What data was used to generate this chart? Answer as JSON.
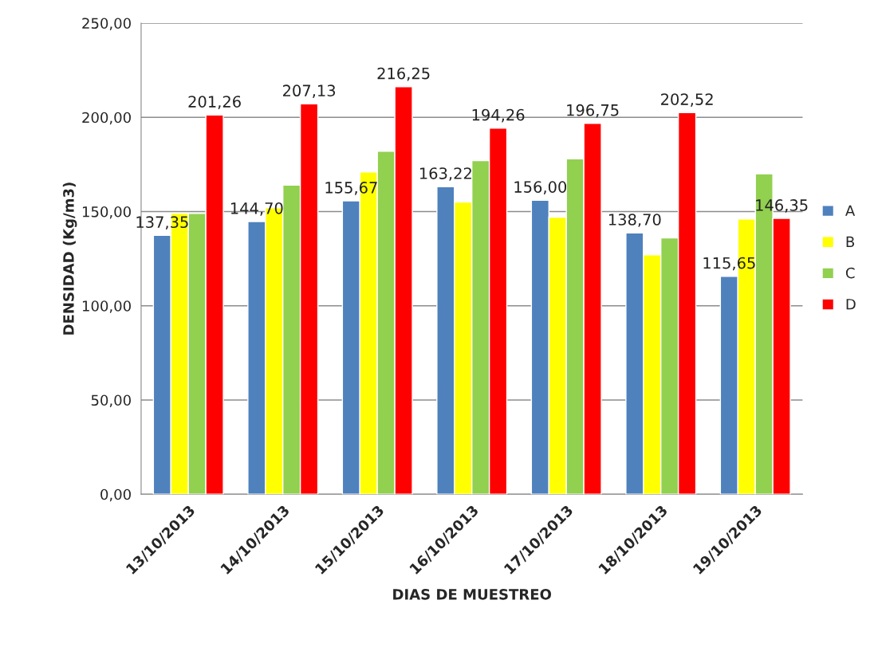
{
  "chart_data": {
    "type": "bar",
    "xlabel": "DIAS DE MUESTREO",
    "ylabel": "DENSIDAD (Kg/m3)",
    "categories": [
      "13/10/2013",
      "14/10/2013",
      "15/10/2013",
      "16/10/2013",
      "17/10/2013",
      "18/10/2013",
      "19/10/2013"
    ],
    "series": [
      {
        "name": "A",
        "color": "#4f81bd",
        "values": [
          137.35,
          144.7,
          155.67,
          163.22,
          156.0,
          138.7,
          115.65
        ],
        "value_labels": [
          "137,35",
          "144,70",
          "155,67",
          "163,22",
          "156,00",
          "138,70",
          "115,65"
        ]
      },
      {
        "name": "B",
        "color": "#ffff00",
        "values": [
          149,
          152,
          171,
          155,
          147,
          127,
          146
        ]
      },
      {
        "name": "C",
        "color": "#92d050",
        "values": [
          149,
          164,
          182,
          177,
          178,
          136,
          170
        ]
      },
      {
        "name": "D",
        "color": "#ff0000",
        "values": [
          201.26,
          207.13,
          216.25,
          194.26,
          196.75,
          202.52,
          146.35
        ],
        "value_labels": [
          "201,26",
          "207,13",
          "216,25",
          "194,26",
          "196,75",
          "202,52",
          "146,35"
        ]
      }
    ],
    "ylim": [
      0,
      250
    ],
    "yticks": [
      {
        "value": 0,
        "label": "0,00"
      },
      {
        "value": 50,
        "label": "50,00"
      },
      {
        "value": 100,
        "label": "100,00"
      },
      {
        "value": 150,
        "label": "150,00"
      },
      {
        "value": 200,
        "label": "200,00"
      },
      {
        "value": 250,
        "label": "250,00"
      }
    ],
    "grid": "y",
    "legend": "right"
  }
}
